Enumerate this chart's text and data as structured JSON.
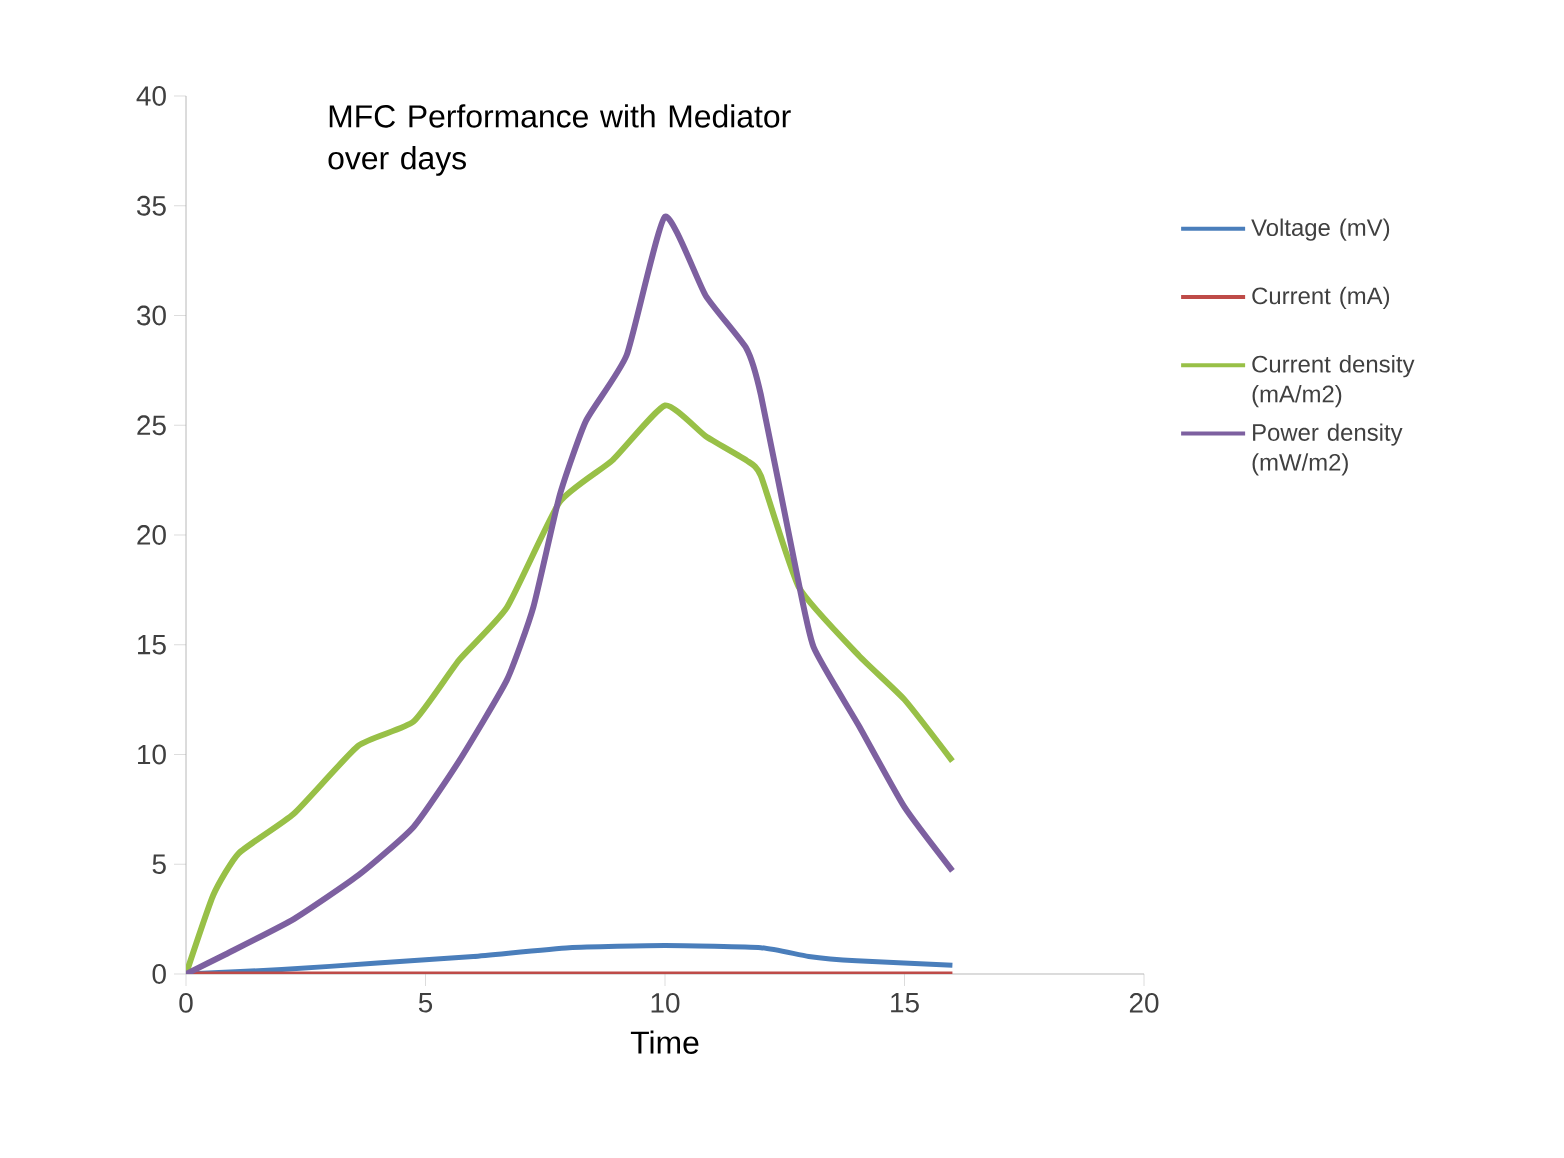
{
  "chart_data": {
    "type": "line",
    "title": "MFC Performance with Mediator over days",
    "xlabel": "Time",
    "xlim": [
      0,
      20
    ],
    "xticks": [
      0,
      5,
      10,
      15,
      20
    ],
    "ylim": [
      0,
      40
    ],
    "yticks": [
      0,
      5,
      10,
      15,
      20,
      25,
      30,
      35,
      40
    ],
    "grid": false,
    "legend": "right",
    "marker": "none",
    "line_style": "solid",
    "series": [
      {
        "name": "Voltage (mV)",
        "color": "#4a7ebb",
        "x": [
          0,
          2,
          4,
          6,
          8,
          10,
          12,
          13,
          14,
          16
        ],
        "values": [
          0,
          0.2,
          0.5,
          0.8,
          1.2,
          1.3,
          1.2,
          0.8,
          0.6,
          0.4
        ]
      },
      {
        "name": "Current (mA)",
        "color": "#be4b48",
        "x": [
          0,
          4,
          8,
          12,
          16
        ],
        "values": [
          0,
          0,
          0,
          0,
          0
        ]
      },
      {
        "name": "Current density (mA/m2)",
        "color": "#98c047",
        "x": [
          0,
          0.57,
          1.1,
          2.25,
          3.6,
          4.75,
          5.7,
          6.7,
          7.8,
          8.9,
          10.0,
          10.85,
          11.7,
          12.0,
          12.8,
          14.05,
          15.0,
          16.0
        ],
        "values": [
          0,
          3.6,
          5.5,
          7.3,
          10.4,
          11.5,
          14.3,
          16.7,
          21.5,
          23.4,
          25.9,
          24.5,
          23.4,
          22.7,
          17.6,
          14.5,
          12.5,
          9.7
        ]
      },
      {
        "name": "Power density (mW/m2)",
        "color": "#7d60a0",
        "x": [
          0,
          0.83,
          2.25,
          3.6,
          4.75,
          5.7,
          6.7,
          7.25,
          7.8,
          8.35,
          9.2,
          10.0,
          10.85,
          11.7,
          12.0,
          12.7,
          13.1,
          14.05,
          15.0,
          16.0
        ],
        "values": [
          0,
          0.9,
          2.5,
          4.5,
          6.7,
          9.7,
          13.4,
          16.7,
          21.8,
          25.2,
          28.2,
          34.5,
          30.9,
          28.5,
          26.4,
          18.8,
          14.9,
          11.3,
          7.6,
          4.7
        ]
      }
    ]
  }
}
